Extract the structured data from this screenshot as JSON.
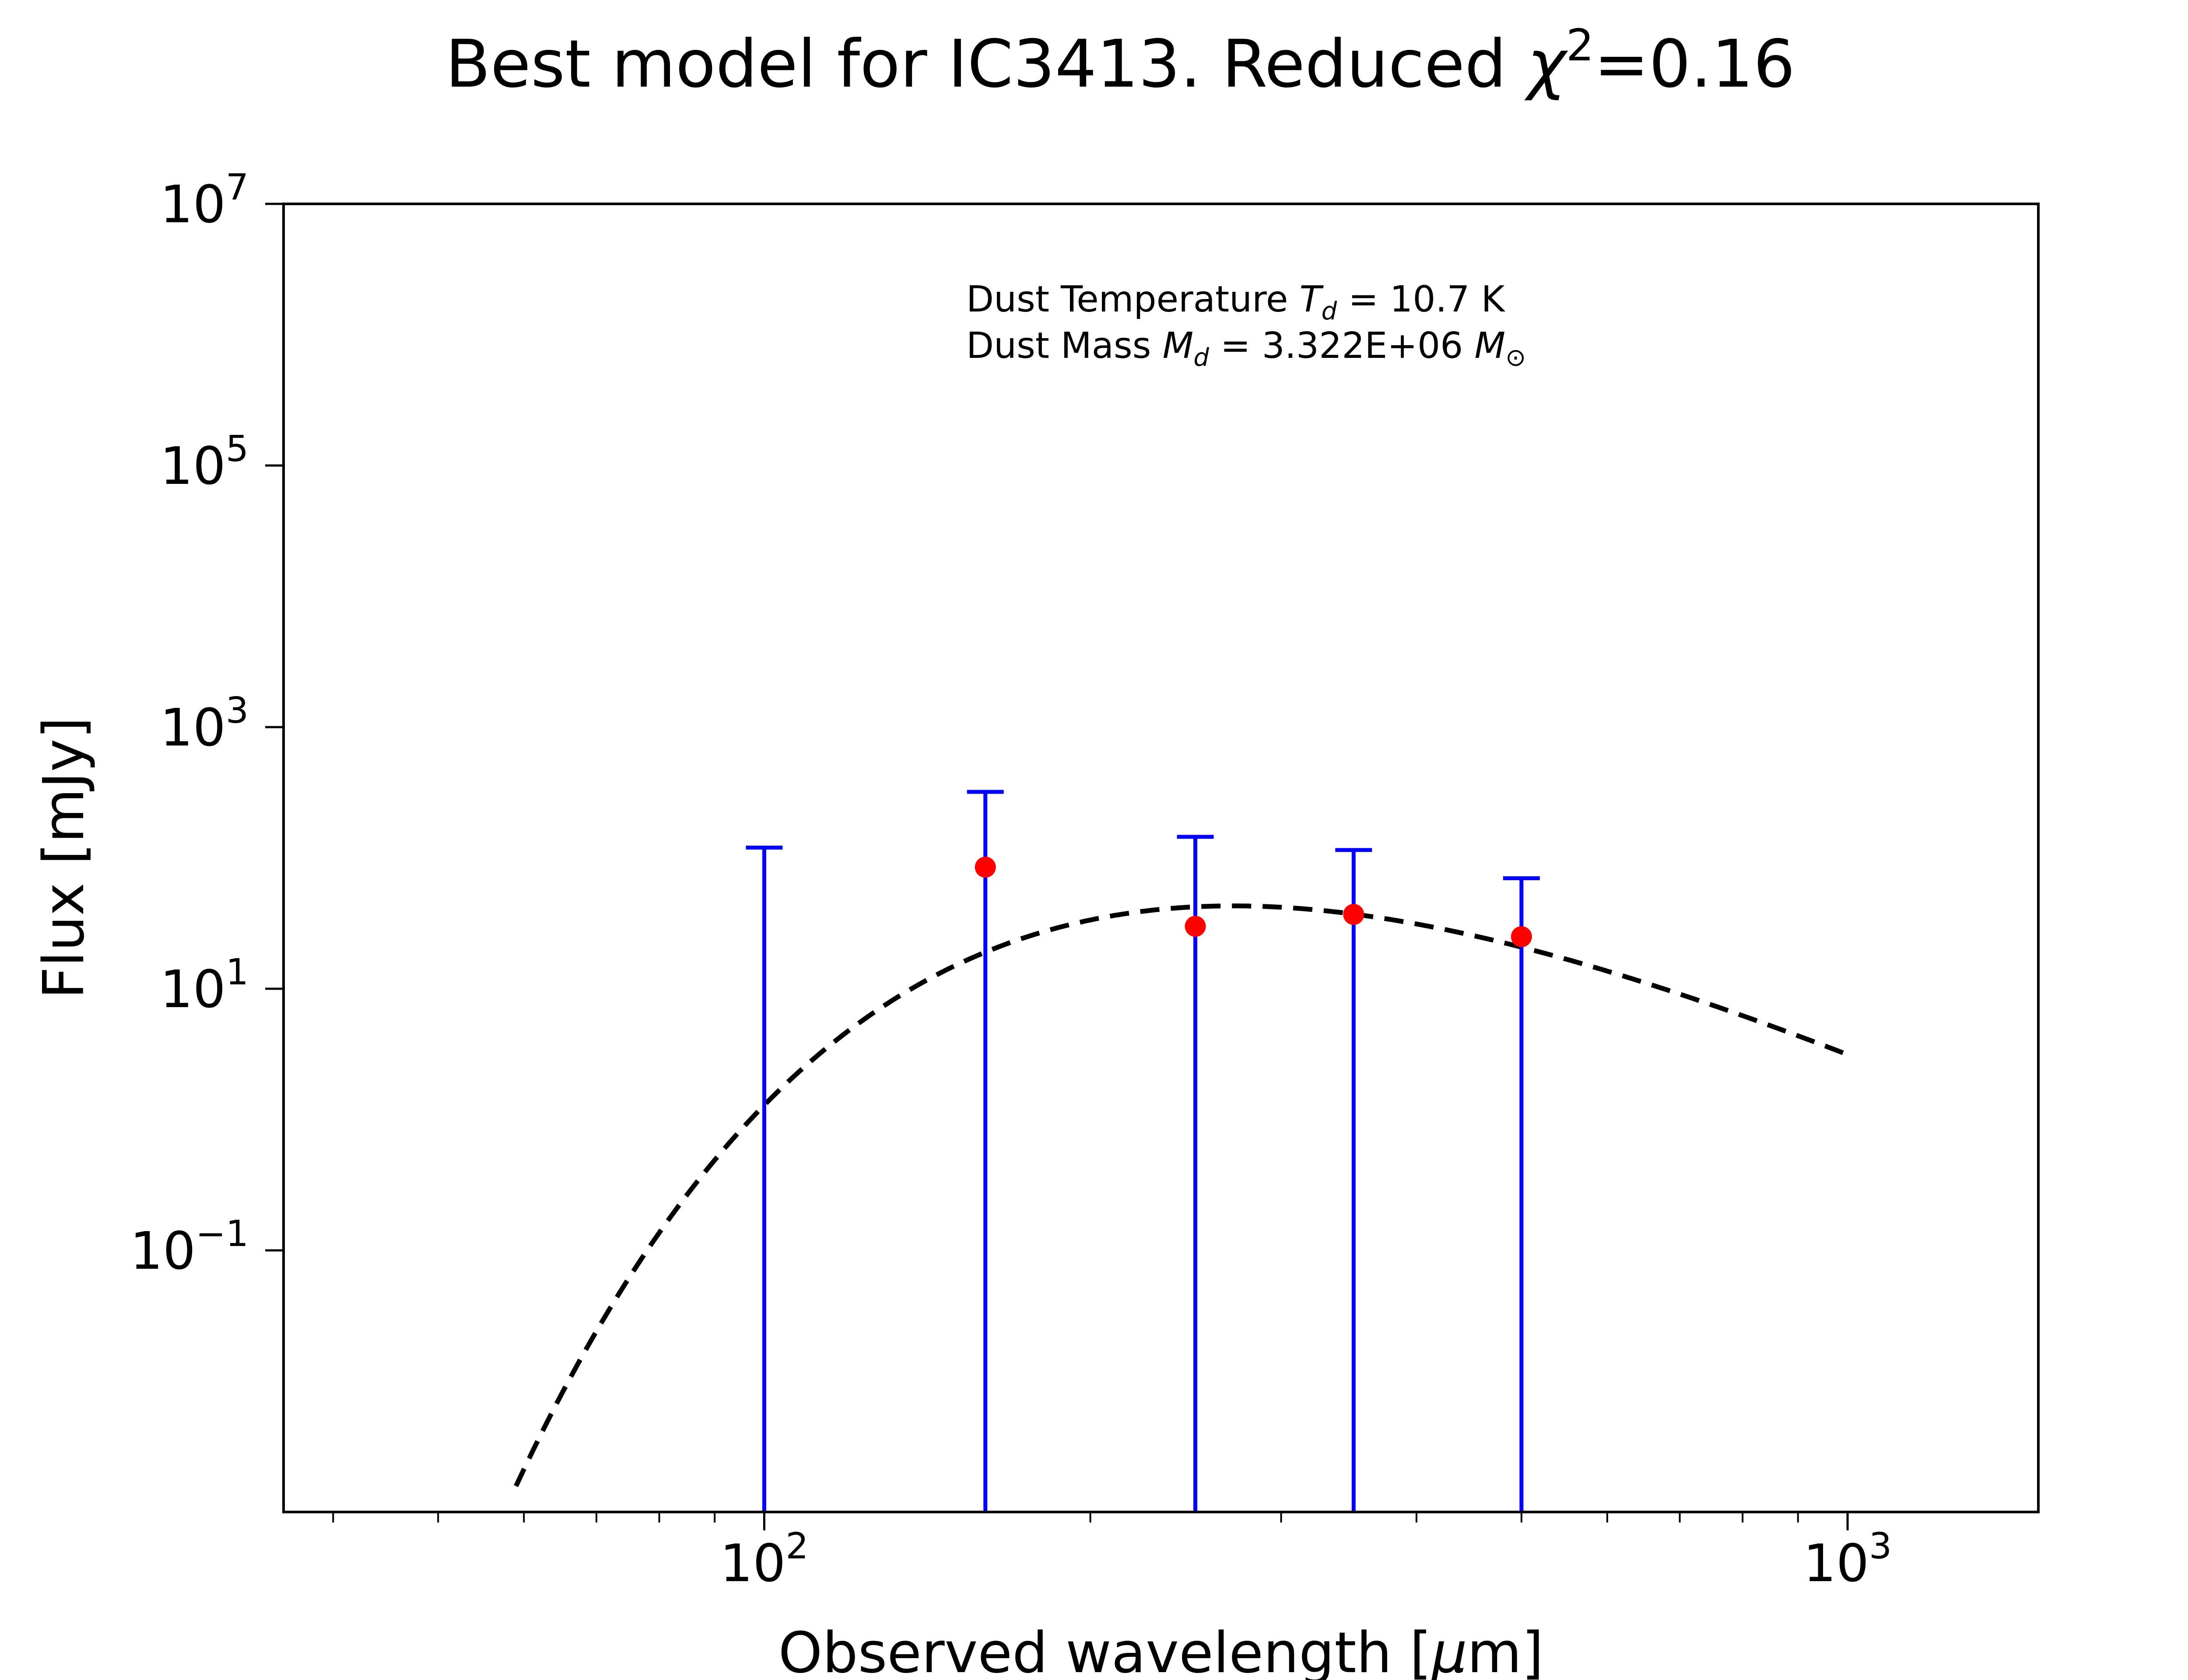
{
  "chart_data": {
    "type": "scatter",
    "title": {
      "prefix": "Best model for IC3413. Reduced ",
      "symbol": "χ",
      "superscript": "2",
      "suffix": "=0.16"
    },
    "xlabel": {
      "prefix": "Observed wavelength [",
      "unit_symbol": "μ",
      "unit_rest": "m]"
    },
    "ylabel": "Flux [mJy]",
    "x_scale": "log",
    "y_scale": "log",
    "xlim": [
      36,
      1500
    ],
    "ylim": [
      0.001,
      10000000
    ],
    "x_ticks": [
      {
        "value": 100,
        "base": "10",
        "exp": "2"
      },
      {
        "value": 1000,
        "base": "10",
        "exp": "3"
      }
    ],
    "y_ticks": [
      {
        "value": 0.1,
        "base": "10",
        "exp": "−1"
      },
      {
        "value": 10,
        "base": "10",
        "exp": "1"
      },
      {
        "value": 1000,
        "base": "10",
        "exp": "3"
      },
      {
        "value": 100000,
        "base": "10",
        "exp": "5"
      },
      {
        "value": 10000000,
        "base": "10",
        "exp": "7"
      }
    ],
    "annotation": {
      "line1": {
        "prefix": "Dust Temperature ",
        "sym": "T",
        "sub": "d",
        "rest": " = 10.7 K"
      },
      "line2": {
        "prefix": "Dust Mass ",
        "sym": "M",
        "sub": "d",
        "rest": " = 3.322E+06 ",
        "sym2": "M",
        "sub2": "⊙"
      }
    },
    "series": [
      {
        "type": "errorbar",
        "color": "#0000ff",
        "marker_color": "#ff0000",
        "points": [
          {
            "x": 100,
            "y": null,
            "yerr_low": 0.001,
            "yerr_high": 120
          },
          {
            "x": 160,
            "y": 85,
            "yerr_low": 0.001,
            "yerr_high": 320
          },
          {
            "x": 250,
            "y": 30,
            "yerr_low": 0.001,
            "yerr_high": 145
          },
          {
            "x": 350,
            "y": 37,
            "yerr_low": 0.001,
            "yerr_high": 115
          },
          {
            "x": 500,
            "y": 25,
            "yerr_low": 0.001,
            "yerr_high": 70
          }
        ]
      },
      {
        "type": "line",
        "style": "dashed",
        "color": "#000000",
        "model": "modified-blackbody",
        "T_d": 10.7,
        "beta": 2,
        "peak_y": 43,
        "x_range": [
          59,
          1000
        ]
      }
    ]
  }
}
